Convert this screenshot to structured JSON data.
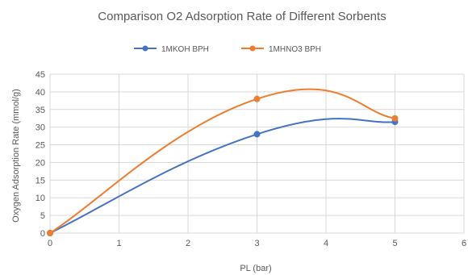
{
  "chart_data": {
    "type": "line",
    "title": "Comparison O2 Adsorption Rate of Different Sorbents",
    "xlabel": "PL (bar)",
    "ylabel": "Oxygen Adsorption Rate (mmol/g)",
    "xlim": [
      0,
      6
    ],
    "ylim": [
      0,
      45
    ],
    "x_ticks": [
      "0",
      "1",
      "2",
      "3",
      "4",
      "5",
      "6"
    ],
    "y_ticks": [
      "0",
      "5",
      "10",
      "15",
      "20",
      "25",
      "30",
      "35",
      "40",
      "45"
    ],
    "grid": true,
    "smooth": true,
    "legend_position": "top",
    "series": [
      {
        "name": "1MKOH BPH",
        "color": "#4472c4",
        "x": [
          0,
          3,
          5
        ],
        "y": [
          0,
          28,
          31.5
        ]
      },
      {
        "name": "1MHNO3 BPH",
        "color": "#ed7d31",
        "x": [
          0,
          3,
          5
        ],
        "y": [
          0,
          38,
          32.5
        ]
      }
    ]
  }
}
